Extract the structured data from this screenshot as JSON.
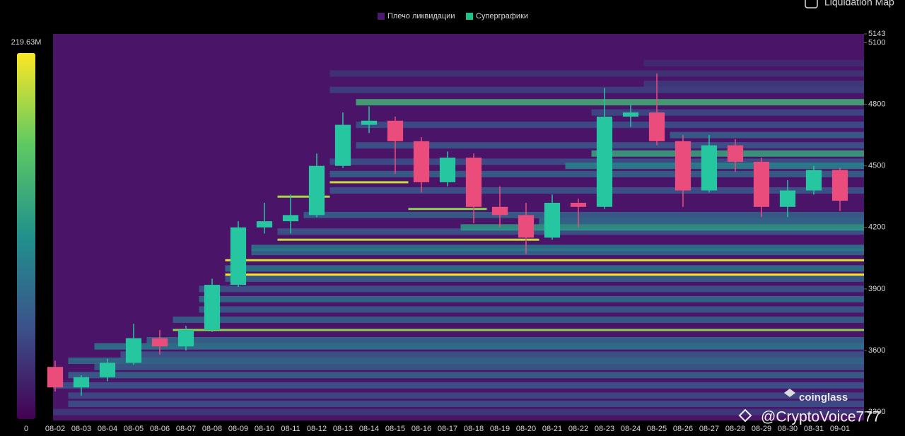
{
  "chart_data": {
    "type": "liquidation-heatmap",
    "legend": [
      {
        "name": "Плечо ликвидации",
        "color": "#4a1a6e"
      },
      {
        "name": "Суперграфики",
        "color": "#1fc28a"
      }
    ],
    "toggle_label": "Liquidation Map",
    "watermarks": [
      "coinglass",
      "@CryptoVoice777"
    ],
    "colorbar": {
      "ticks": [
        {
          "value": 0,
          "label": "0"
        },
        {
          "value": 219630000,
          "label": "219.63M"
        }
      ],
      "colors": [
        "#440154",
        "#3b528b",
        "#21918c",
        "#5ec962",
        "#fde725"
      ]
    },
    "categories": [
      "08-02",
      "08-03",
      "08-04",
      "08-05",
      "08-06",
      "08-07",
      "08-08",
      "08-09",
      "08-10",
      "08-11",
      "08-12",
      "08-13",
      "08-14",
      "08-15",
      "08-16",
      "08-17",
      "08-18",
      "08-19",
      "08-20",
      "08-21",
      "08-22",
      "08-23",
      "08-24",
      "08-25",
      "08-26",
      "08-27",
      "08-28",
      "08-29",
      "08-30",
      "08-31",
      "09-01"
    ],
    "open": [
      3520,
      3420,
      3470,
      3540,
      3660,
      3620,
      3700,
      3920,
      4200,
      4230,
      4260,
      4500,
      4700,
      4720,
      4620,
      4420,
      4540,
      4300,
      4260,
      4150,
      4320,
      4300,
      4740,
      4760,
      4620,
      4380,
      4600,
      4520,
      4300,
      4380,
      4480
    ],
    "high": [
      3550,
      3480,
      3560,
      3730,
      3700,
      3720,
      3950,
      4230,
      4320,
      4360,
      4560,
      4760,
      4790,
      4740,
      4640,
      4570,
      4560,
      4400,
      4320,
      4360,
      4340,
      4880,
      4800,
      4950,
      4650,
      4650,
      4630,
      4540,
      4430,
      4500,
      4490
    ],
    "low": [
      3400,
      3380,
      3450,
      3530,
      3580,
      3600,
      3690,
      3910,
      4170,
      4170,
      4250,
      4490,
      4660,
      4460,
      4370,
      4400,
      4220,
      4200,
      4070,
      4140,
      4200,
      4290,
      4690,
      4600,
      4300,
      4370,
      4470,
      4250,
      4250,
      4360,
      4280
    ],
    "close": [
      3420,
      3470,
      3540,
      3660,
      3620,
      3700,
      3920,
      4200,
      4230,
      4260,
      4500,
      4700,
      4720,
      4620,
      4420,
      4540,
      4300,
      4260,
      4150,
      4320,
      4300,
      4740,
      4760,
      4620,
      4380,
      4600,
      4520,
      4300,
      4380,
      4480,
      4330
    ],
    "up_color": "#26c6a0",
    "down_color": "#ea4d7c",
    "levels": [
      {
        "price": 3300,
        "from": "08-02",
        "value": 40000000
      },
      {
        "price": 3340,
        "from": "08-03",
        "value": 55000000
      },
      {
        "price": 3380,
        "from": "08-03",
        "value": 50000000
      },
      {
        "price": 3430,
        "from": "08-02",
        "value": 60000000
      },
      {
        "price": 3480,
        "from": "08-03",
        "value": 70000000
      },
      {
        "price": 3520,
        "from": "08-04",
        "value": 65000000
      },
      {
        "price": 3550,
        "from": "08-03",
        "value": 80000000
      },
      {
        "price": 3580,
        "from": "08-05",
        "value": 60000000
      },
      {
        "price": 3620,
        "from": "08-04",
        "value": 90000000
      },
      {
        "price": 3650,
        "from": "08-06",
        "value": 75000000
      },
      {
        "price": 3700,
        "from": "08-07",
        "value": 180000000
      },
      {
        "price": 3750,
        "from": "08-07",
        "value": 70000000
      },
      {
        "price": 3800,
        "from": "08-08",
        "value": 65000000
      },
      {
        "price": 3850,
        "from": "08-08",
        "value": 80000000
      },
      {
        "price": 3900,
        "from": "08-08",
        "value": 60000000
      },
      {
        "price": 3950,
        "from": "08-09",
        "value": 70000000
      },
      {
        "price": 3970,
        "from": "08-09",
        "value": 219000000
      },
      {
        "price": 4000,
        "from": "08-09",
        "value": 85000000
      },
      {
        "price": 4040,
        "from": "08-09",
        "value": 210000000
      },
      {
        "price": 4080,
        "from": "08-10",
        "value": 75000000
      },
      {
        "price": 4100,
        "from": "08-10",
        "value": 90000000
      },
      {
        "price": 4140,
        "from": "08-11",
        "to": "08-20",
        "value": 200000000
      },
      {
        "price": 4180,
        "from": "08-11",
        "value": 60000000
      },
      {
        "price": 4200,
        "from": "08-18",
        "value": 120000000
      },
      {
        "price": 4230,
        "from": "08-21",
        "value": 80000000
      },
      {
        "price": 4260,
        "from": "08-12",
        "value": 70000000
      },
      {
        "price": 4290,
        "from": "08-16",
        "to": "08-18",
        "value": 180000000
      },
      {
        "price": 4350,
        "from": "08-11",
        "to": "08-12",
        "value": 190000000
      },
      {
        "price": 4380,
        "from": "08-13",
        "value": 60000000
      },
      {
        "price": 4420,
        "from": "08-13",
        "to": "08-15",
        "value": 200000000
      },
      {
        "price": 4460,
        "from": "08-13",
        "value": 70000000
      },
      {
        "price": 4500,
        "from": "08-22",
        "value": 100000000
      },
      {
        "price": 4520,
        "from": "08-13",
        "value": 55000000
      },
      {
        "price": 4560,
        "from": "08-23",
        "value": 130000000
      },
      {
        "price": 4600,
        "from": "08-14",
        "value": 60000000
      },
      {
        "price": 4650,
        "from": "08-26",
        "value": 70000000
      },
      {
        "price": 4700,
        "from": "08-14",
        "value": 55000000
      },
      {
        "price": 4760,
        "from": "08-23",
        "value": 50000000
      },
      {
        "price": 4810,
        "from": "08-14",
        "value": 140000000
      },
      {
        "price": 4870,
        "from": "08-13",
        "value": 45000000
      },
      {
        "price": 4900,
        "from": "08-25",
        "value": 40000000
      },
      {
        "price": 4950,
        "from": "08-13",
        "value": 35000000
      },
      {
        "price": 5000,
        "from": "08-25",
        "value": 30000000
      }
    ],
    "ylim": [
      3259,
      5143
    ],
    "yticks": [
      3300,
      3600,
      3900,
      4200,
      4500,
      4800,
      5100,
      5143
    ]
  }
}
